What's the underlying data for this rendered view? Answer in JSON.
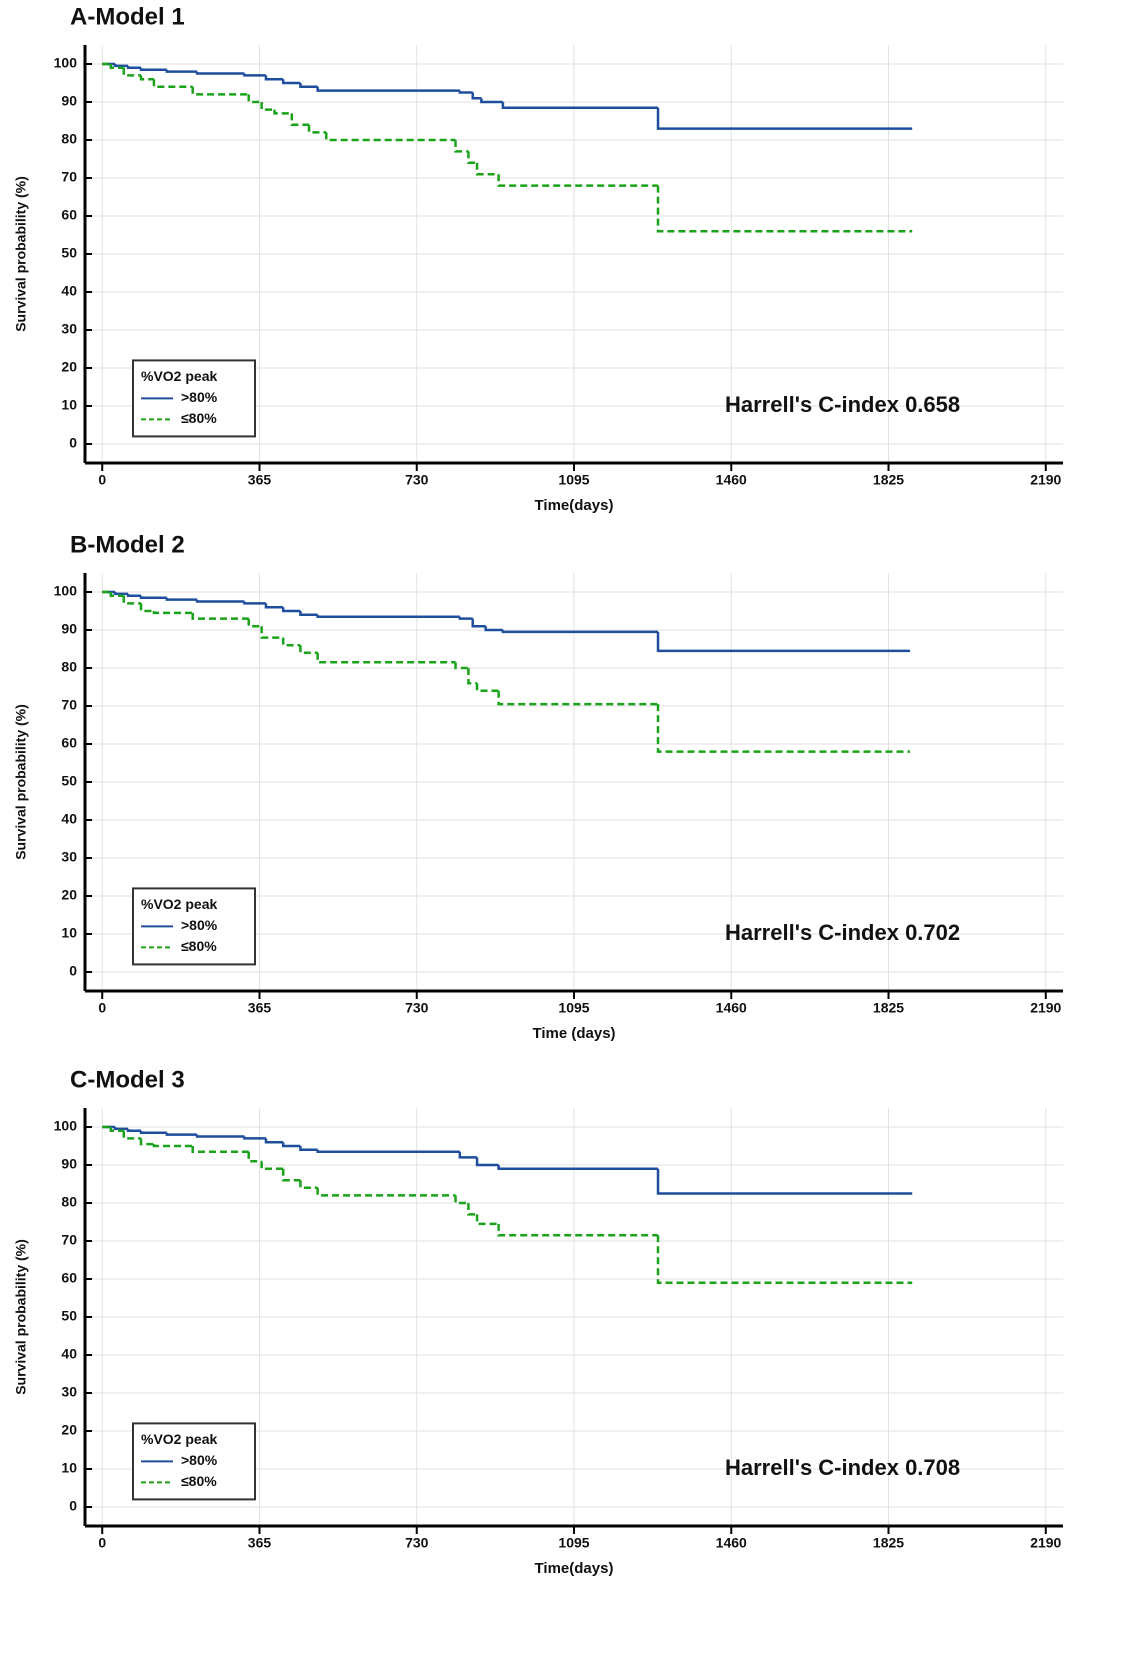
{
  "chart_data": [
    {
      "type": "line",
      "step": true,
      "title": "A-Model 1",
      "xlabel": "Time(days)",
      "ylabel": "Survival probability (%)",
      "annotation": "Harrell's C-index 0.658",
      "legend_title": "%VO2 peak",
      "grid": true,
      "xlim": [
        -40,
        2230
      ],
      "ylim": [
        -5,
        105
      ],
      "xticks": [
        0,
        365,
        730,
        1095,
        1460,
        1825,
        2190
      ],
      "yticks": [
        0,
        10,
        20,
        30,
        40,
        50,
        60,
        70,
        80,
        90,
        100
      ],
      "series": [
        {
          "name": ">80%",
          "color": "#1f4e9c",
          "dash": false,
          "x": [
            0,
            30,
            60,
            90,
            150,
            220,
            330,
            380,
            420,
            460,
            500,
            830,
            860,
            880,
            930,
            1290,
            1880
          ],
          "values": [
            100,
            99.5,
            99,
            98.5,
            98,
            97.5,
            97,
            96,
            95,
            94,
            93,
            92.5,
            91,
            90,
            88.5,
            83,
            83
          ]
        },
        {
          "name": "≤80%",
          "color": "#1aa31a",
          "dash": true,
          "x": [
            0,
            20,
            50,
            90,
            120,
            210,
            340,
            370,
            400,
            440,
            480,
            520,
            820,
            850,
            870,
            920,
            1290,
            1880
          ],
          "values": [
            100,
            99,
            97,
            96,
            94,
            92,
            90,
            88,
            87,
            84,
            82,
            80,
            77,
            74,
            71,
            68,
            56,
            56
          ]
        }
      ]
    },
    {
      "type": "line",
      "step": true,
      "title": "B-Model 2",
      "xlabel": "Time (days)",
      "ylabel": "Survival probability (%)",
      "annotation": "Harrell's C-index 0.702",
      "legend_title": "%VO2 peak",
      "grid": true,
      "xlim": [
        -40,
        2230
      ],
      "ylim": [
        -5,
        105
      ],
      "xticks": [
        0,
        365,
        730,
        1095,
        1460,
        1825,
        2190
      ],
      "yticks": [
        0,
        10,
        20,
        30,
        40,
        50,
        60,
        70,
        80,
        90,
        100
      ],
      "series": [
        {
          "name": ">80%",
          "color": "#1f4e9c",
          "dash": false,
          "x": [
            0,
            30,
            60,
            90,
            150,
            220,
            330,
            380,
            420,
            460,
            500,
            830,
            860,
            890,
            930,
            1290,
            1875
          ],
          "values": [
            100,
            99.5,
            99,
            98.5,
            98,
            97.5,
            97,
            96,
            95,
            94,
            93.5,
            93,
            91,
            90,
            89.5,
            84.5,
            84.5
          ]
        },
        {
          "name": "≤80%",
          "color": "#1aa31a",
          "dash": true,
          "x": [
            0,
            20,
            50,
            90,
            120,
            210,
            340,
            370,
            420,
            460,
            500,
            820,
            850,
            870,
            920,
            1290,
            1875
          ],
          "values": [
            100,
            99,
            97,
            95,
            94.5,
            93,
            91,
            88,
            86,
            84,
            81.5,
            80,
            76,
            74,
            70.5,
            58,
            58
          ]
        }
      ]
    },
    {
      "type": "line",
      "step": true,
      "title": "C-Model 3",
      "xlabel": "Time(days)",
      "ylabel": "Survival probability (%)",
      "annotation": "Harrell's C-index 0.708",
      "legend_title": "%VO2 peak",
      "grid": true,
      "xlim": [
        -40,
        2230
      ],
      "ylim": [
        -5,
        105
      ],
      "xticks": [
        0,
        365,
        730,
        1095,
        1460,
        1825,
        2190
      ],
      "yticks": [
        0,
        10,
        20,
        30,
        40,
        50,
        60,
        70,
        80,
        90,
        100
      ],
      "series": [
        {
          "name": ">80%",
          "color": "#1f4e9c",
          "dash": false,
          "x": [
            0,
            30,
            60,
            90,
            150,
            220,
            330,
            380,
            420,
            460,
            500,
            830,
            870,
            920,
            1290,
            1880
          ],
          "values": [
            100,
            99.5,
            99,
            98.5,
            98,
            97.5,
            97,
            96,
            95,
            94,
            93.5,
            92,
            90,
            89,
            82.5,
            82.5
          ]
        },
        {
          "name": "≤80%",
          "color": "#1aa31a",
          "dash": true,
          "x": [
            0,
            20,
            50,
            90,
            120,
            210,
            340,
            370,
            420,
            460,
            500,
            820,
            850,
            870,
            920,
            1290,
            1880
          ],
          "values": [
            100,
            99,
            97,
            95.5,
            95,
            93.5,
            91,
            89,
            86,
            84,
            82,
            80,
            77,
            74.5,
            71.5,
            59,
            59
          ]
        }
      ]
    }
  ]
}
